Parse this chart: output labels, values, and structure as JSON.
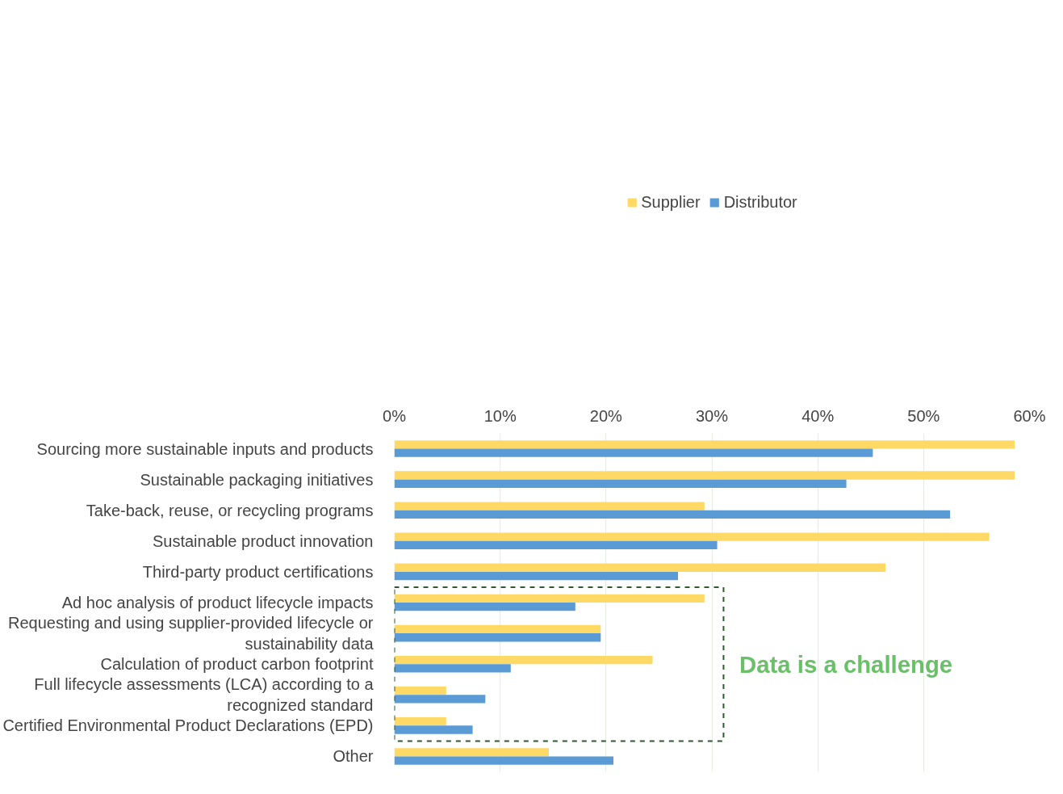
{
  "chart_data": {
    "type": "bar",
    "orientation": "horizontal",
    "categories": [
      "Sourcing more sustainable inputs and products",
      "Sustainable packaging initiatives",
      "Take-back, reuse, or recycling programs",
      "Sustainable product innovation",
      "Third-party product certifications",
      "Ad hoc analysis of product lifecycle impacts",
      "Requesting and using supplier-provided lifecycle or\nsustainability data",
      "Calculation of product carbon footprint",
      "Full lifecycle assessments (LCA) according to a\nrecognized standard",
      "Certified Environmental Product Declarations (EPD)",
      "Other"
    ],
    "series": [
      {
        "name": "Supplier",
        "color": "#fed966",
        "values": [
          58.6,
          58.6,
          29.3,
          56.2,
          46.4,
          29.3,
          19.5,
          24.4,
          4.9,
          4.9,
          14.6
        ]
      },
      {
        "name": "Distributor",
        "color": "#5b9bd5",
        "values": [
          45.2,
          42.7,
          52.5,
          30.5,
          26.8,
          17.1,
          19.5,
          11.0,
          8.6,
          7.4,
          20.7
        ]
      }
    ],
    "xlim": [
      0,
      60
    ],
    "xticks": [
      {
        "value": 0,
        "label": "0%"
      },
      {
        "value": 10,
        "label": "10%"
      },
      {
        "value": 20,
        "label": "20%"
      },
      {
        "value": 30,
        "label": "30%"
      },
      {
        "value": 40,
        "label": "40%"
      },
      {
        "value": 50,
        "label": "50%"
      },
      {
        "value": 60,
        "label": "60%"
      }
    ],
    "grid": "x",
    "legend": "top",
    "annotations": [
      "Data is a challenge"
    ]
  }
}
